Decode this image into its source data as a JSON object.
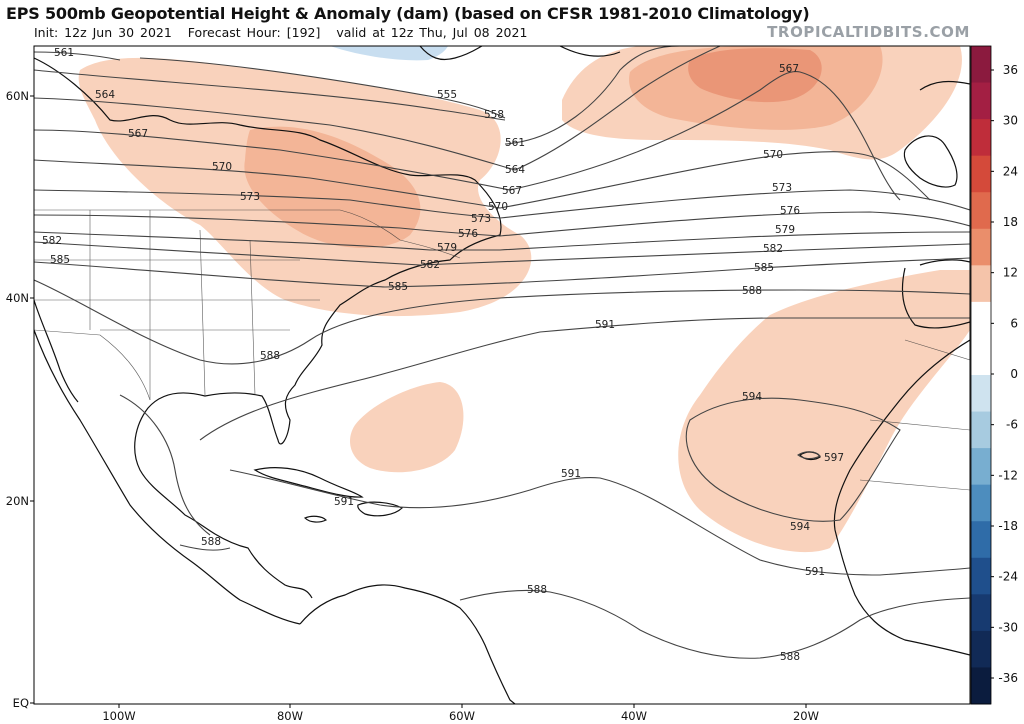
{
  "header": {
    "title": "EPS 500mb Geopotential Height & Anomaly (dam) (based on CFSR 1981-2010 Climatology)",
    "init": "Init: 12z Jun 30 2021",
    "forecast_hour": "Forecast Hour: [192]",
    "valid": "valid at 12z Thu, Jul 08 2021",
    "brand": "TROPICALTIDBITS.COM"
  },
  "axes": {
    "lat_labels": [
      "60N",
      "40N",
      "20N",
      "EQ"
    ],
    "lon_labels": [
      "100W",
      "80W",
      "60W",
      "40W",
      "20W"
    ]
  },
  "colorbar": {
    "ticks": [
      "36",
      "30",
      "24",
      "18",
      "12",
      "6",
      "0",
      "-6",
      "-12",
      "-18",
      "-24",
      "-30",
      "-36"
    ],
    "colors": [
      "#8b1a3e",
      "#a31f43",
      "#bf2d3a",
      "#d44a3a",
      "#e06a4d",
      "#ea8e6b",
      "#f5c4aa",
      "#ffffff",
      "#ffffff",
      "#cfe3ef",
      "#a7cbe0",
      "#78aed0",
      "#4d8dbe",
      "#2f6ca8",
      "#1f4f8c",
      "#173a70",
      "#112a56",
      "#0b1c3e"
    ]
  },
  "contour_labels": [
    "561",
    "564",
    "567",
    "570",
    "573",
    "576",
    "579",
    "582",
    "585",
    "588",
    "591",
    "594",
    "597",
    "555",
    "558"
  ],
  "anomaly_colors": {
    "light": "#f9d2bc",
    "medium": "#f3b597",
    "strong": "#ea9677",
    "blue": "#c8def0"
  }
}
